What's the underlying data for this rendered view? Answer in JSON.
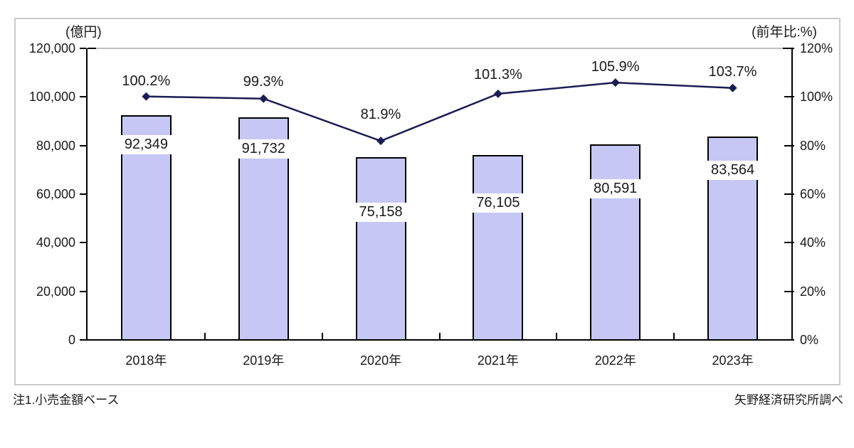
{
  "footnotes": {
    "note": "注1.小売金額ベース",
    "source": "矢野経済研究所調べ"
  },
  "chart_data": {
    "type": "bar",
    "combo": "bar series on left axis + line series with diamond markers on right axis",
    "categories": [
      "2018年",
      "2019年",
      "2020年",
      "2021年",
      "2022年",
      "2023年"
    ],
    "series": [
      {
        "name": "(億円)",
        "chart_type": "bar",
        "axis": "left",
        "values": [
          92349,
          91732,
          75158,
          76105,
          80591,
          83564
        ],
        "labels": [
          "92,349",
          "91,732",
          "75,158",
          "76,105",
          "80,591",
          "83,564"
        ]
      },
      {
        "name": "(前年比:%)",
        "chart_type": "line",
        "axis": "right",
        "values": [
          100.2,
          99.3,
          81.9,
          101.3,
          105.9,
          103.7
        ],
        "labels": [
          "100.2%",
          "99.3%",
          "81.9%",
          "101.3%",
          "105.9%",
          "103.7%"
        ]
      }
    ],
    "left_axis": {
      "title": "(億円)",
      "min": 0,
      "max": 120000,
      "step": 20000,
      "tick_labels": [
        "120,000",
        "100,000",
        "80,000",
        "60,000",
        "40,000",
        "20,000",
        "0"
      ]
    },
    "right_axis": {
      "title": "(前年比:%)",
      "min": 0,
      "max": 120,
      "step": 20,
      "tick_labels": [
        "120%",
        "100%",
        "80%",
        "60%",
        "40%",
        "20%",
        "0%"
      ]
    },
    "legend": "none",
    "grid": "top border line only"
  },
  "colors": {
    "background": "#ffffff",
    "frame_border": "#cacaca",
    "bar_fill": "#c7c7f5",
    "bar_border": "#000000",
    "line": "#1c1c54",
    "marker": "#1c1c54",
    "axis": "#000000",
    "top_gridline": "#c0c0c0",
    "text": "#1a1a1a",
    "label_background": "#ffffff"
  }
}
